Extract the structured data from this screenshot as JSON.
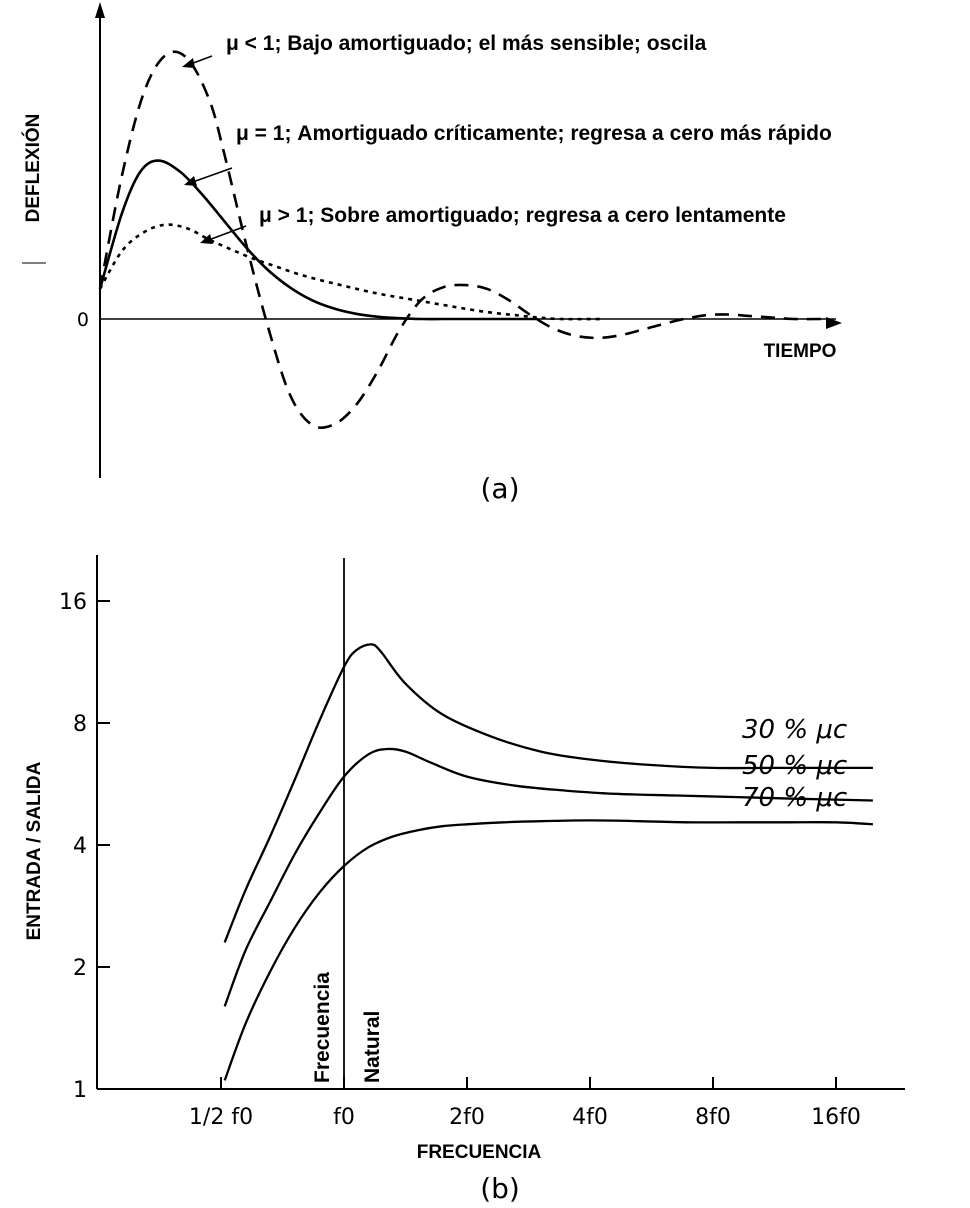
{
  "chart_data": [
    {
      "panel_label": "(a)",
      "type": "line",
      "title": "",
      "xlabel": "TIEMPO",
      "ylabel": "DEFLEXIÓN",
      "y_tick_labels": [
        "0"
      ],
      "xlim": [
        0,
        10
      ],
      "ylim": [
        -1.4,
        3.6
      ],
      "series": [
        {
          "name": "μ < 1; Bajo amortiguado; el más sensible; oscila",
          "style": "dashed",
          "x": [
            0,
            0.3,
            0.6,
            0.9,
            1.2,
            1.5,
            1.7,
            2.0,
            2.3,
            2.6,
            2.9,
            3.2,
            3.5,
            3.8,
            4.1,
            4.4,
            4.7,
            5.0,
            5.3,
            5.6,
            5.9,
            6.2,
            6.5,
            6.8,
            7.1,
            7.4,
            7.7,
            8.0,
            8.3,
            8.6,
            8.9,
            9.2,
            9.5,
            9.9
          ],
          "y": [
            0.4,
            1.9,
            3.0,
            3.5,
            3.45,
            2.9,
            2.2,
            1.0,
            -0.1,
            -1.0,
            -1.4,
            -1.4,
            -1.15,
            -0.7,
            -0.15,
            0.25,
            0.42,
            0.45,
            0.4,
            0.25,
            0.05,
            -0.12,
            -0.22,
            -0.25,
            -0.22,
            -0.15,
            -0.07,
            0.0,
            0.05,
            0.06,
            0.04,
            0.02,
            0.0,
            0.0
          ]
        },
        {
          "name": "μ = 1; Amortiguado críticamente; regresa a cero más rápido",
          "style": "solid",
          "x": [
            0,
            0.3,
            0.55,
            0.8,
            1.1,
            1.4,
            1.7,
            2.0,
            2.3,
            2.6,
            2.9,
            3.2,
            3.5,
            3.8,
            4.1,
            4.4,
            4.7,
            5.0,
            5.5,
            6.0
          ],
          "y": [
            0.4,
            1.4,
            1.95,
            2.1,
            1.95,
            1.65,
            1.3,
            0.95,
            0.65,
            0.42,
            0.25,
            0.14,
            0.07,
            0.03,
            0.01,
            0.0,
            0.0,
            0.0,
            0.0,
            0.0
          ]
        },
        {
          "name": "μ > 1; Sobre amortiguado; regresa a cero lentamente",
          "style": "dotted",
          "x": [
            0,
            0.3,
            0.6,
            0.9,
            1.2,
            1.5,
            1.8,
            2.1,
            2.4,
            2.7,
            3.0,
            3.3,
            3.6,
            3.9,
            4.2,
            4.5,
            4.8,
            5.1,
            5.4,
            5.7,
            6.0,
            6.3,
            6.9
          ],
          "y": [
            0.4,
            0.9,
            1.15,
            1.25,
            1.2,
            1.05,
            0.92,
            0.8,
            0.7,
            0.6,
            0.52,
            0.45,
            0.38,
            0.32,
            0.27,
            0.22,
            0.17,
            0.12,
            0.08,
            0.05,
            0.02,
            0.0,
            0.0
          ]
        }
      ]
    },
    {
      "panel_label": "(b)",
      "type": "line",
      "title": "",
      "xlabel": "FRECUENCIA",
      "ylabel": "ENTRADA / SALIDA",
      "x_scale": "log2",
      "y_scale": "log2",
      "x_tick_labels": [
        "1/2 f0",
        "f0",
        "2f0",
        "4f0",
        "8f0",
        "16f0"
      ],
      "y_tick_labels": [
        "1",
        "2",
        "4",
        "8",
        "16"
      ],
      "y_ticks": [
        1,
        2,
        4,
        8,
        16
      ],
      "x_ticks_octaves": [
        -1,
        0,
        1,
        2,
        3,
        4
      ],
      "xlim_octaves": [
        -2,
        4.55
      ],
      "ylim": [
        1,
        22
      ],
      "reference_line": {
        "x_octave": 0,
        "labels": [
          "Frecuencia",
          "Natural"
        ]
      },
      "series": [
        {
          "name": "30 % μc",
          "x_octaves": [
            -0.97,
            -0.8,
            -0.6,
            -0.4,
            -0.2,
            0.0,
            0.1,
            0.22,
            0.3,
            0.5,
            0.8,
            1.2,
            1.6,
            2.0,
            2.5,
            3.0,
            3.5,
            4.0,
            4.3
          ],
          "y": [
            2.3,
            3.1,
            4.2,
            5.8,
            8.1,
            11.0,
            12.1,
            12.5,
            12.0,
            10.0,
            8.4,
            7.4,
            6.8,
            6.5,
            6.3,
            6.2,
            6.2,
            6.2,
            6.2
          ]
        },
        {
          "name": "50 % μc",
          "x_octaves": [
            -0.97,
            -0.8,
            -0.6,
            -0.4,
            -0.2,
            0.0,
            0.2,
            0.35,
            0.5,
            0.7,
            1.0,
            1.4,
            1.8,
            2.2,
            2.7,
            3.2,
            3.7,
            4.3
          ],
          "y": [
            1.6,
            2.2,
            2.9,
            3.8,
            4.8,
            5.9,
            6.7,
            6.9,
            6.8,
            6.4,
            5.9,
            5.6,
            5.45,
            5.35,
            5.3,
            5.25,
            5.2,
            5.15
          ]
        },
        {
          "name": "70 % μc",
          "x_octaves": [
            -0.97,
            -0.8,
            -0.6,
            -0.4,
            -0.2,
            0.0,
            0.2,
            0.4,
            0.6,
            0.8,
            1.0,
            1.3,
            1.6,
            2.0,
            2.4,
            2.8,
            3.2,
            3.6,
            4.0,
            4.3
          ],
          "y": [
            1.05,
            1.45,
            1.95,
            2.5,
            3.05,
            3.55,
            3.95,
            4.2,
            4.35,
            4.45,
            4.5,
            4.55,
            4.58,
            4.6,
            4.58,
            4.55,
            4.55,
            4.55,
            4.55,
            4.5
          ]
        }
      ]
    }
  ],
  "glyphs": {
    "mu_small": "μ",
    "subscript_c": "c",
    "half_num": "1",
    "half_den": "2",
    "f": "f",
    "sub0": "0"
  }
}
